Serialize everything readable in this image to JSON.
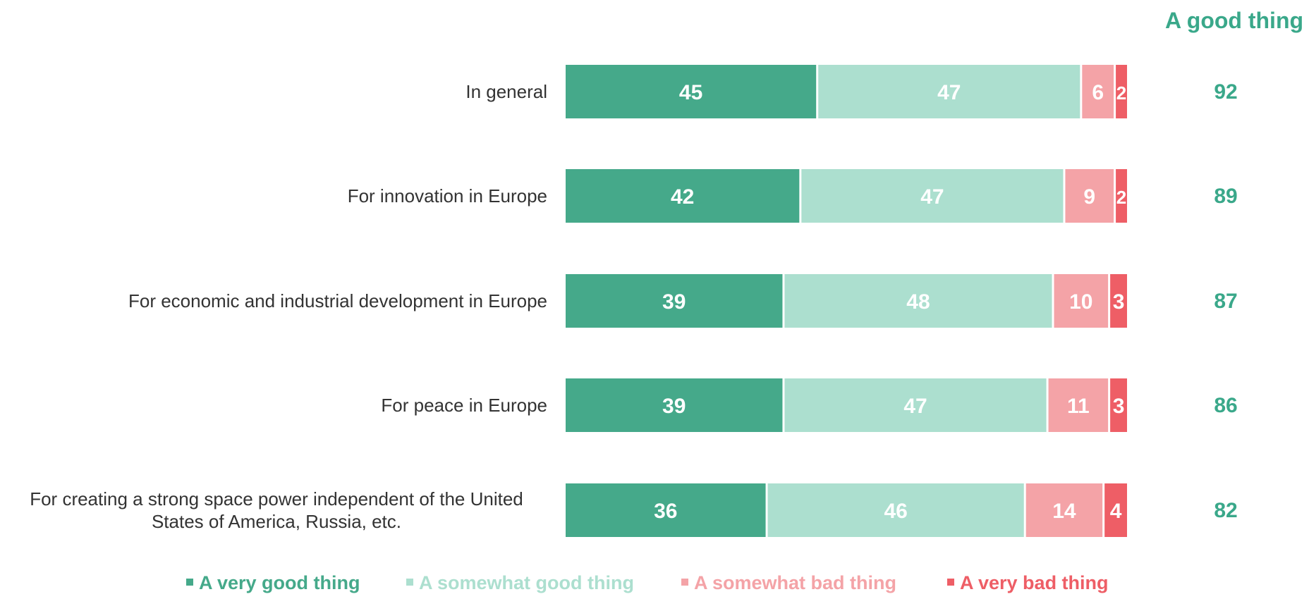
{
  "chart_data": {
    "type": "bar",
    "orientation": "horizontal",
    "stacked": true,
    "categories": [
      "In general",
      "For innovation in Europe",
      "For economic and industrial development in Europe",
      "For peace in Europe",
      "For creating a strong space power independent of the United States of America, Russia, etc."
    ],
    "series": [
      {
        "name": "A very good thing",
        "color": "#45a98a",
        "values": [
          45,
          42,
          39,
          39,
          36
        ]
      },
      {
        "name": "A somewhat good thing",
        "color": "#acdfcf",
        "values": [
          47,
          47,
          48,
          47,
          46
        ]
      },
      {
        "name": "A somewhat bad thing",
        "color": "#f4a3a7",
        "values": [
          6,
          9,
          10,
          11,
          14
        ]
      },
      {
        "name": "A very bad thing",
        "color": "#ee5e66",
        "values": [
          2,
          2,
          3,
          3,
          4
        ]
      }
    ],
    "totals": {
      "header": "A good thing",
      "color": "#3aa88a",
      "values": [
        92,
        89,
        87,
        86,
        82
      ]
    },
    "legend_position": "bottom",
    "grid": false
  }
}
